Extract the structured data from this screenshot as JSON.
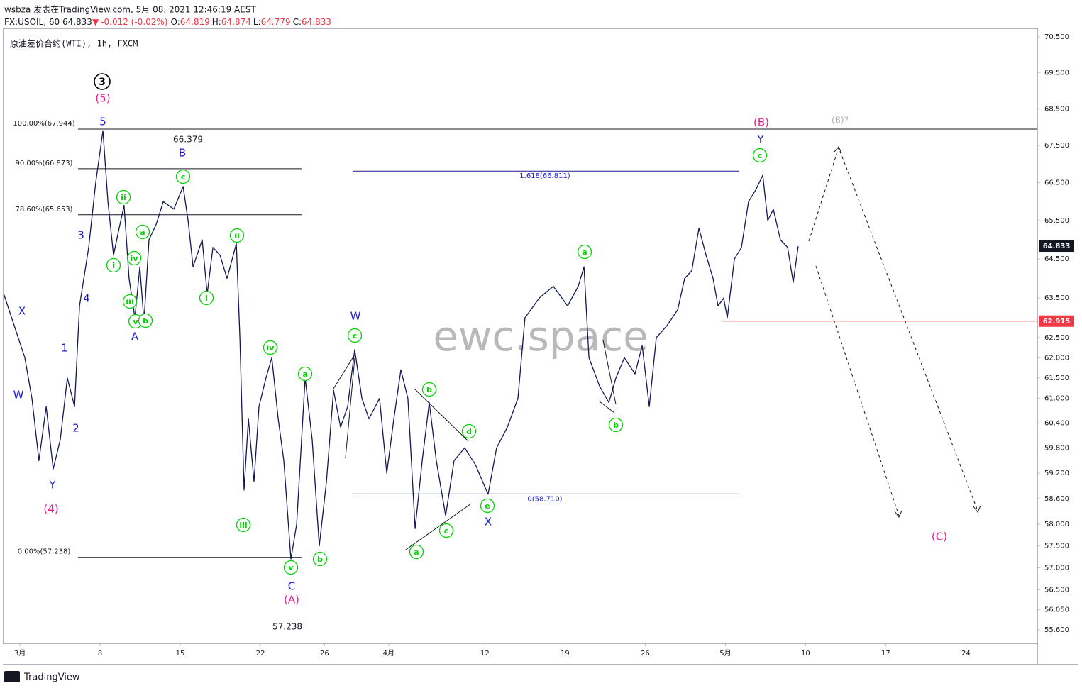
{
  "header": {
    "publisher": "wsbza 发表在TradingView.com, 5月 08, 2021 12:46:19 AEST",
    "symbol": "FX:USOIL, 60 64.833",
    "arrow": "▼",
    "change": "-0.012 (-0.02%)",
    "o_label": "O:",
    "o": "64.819",
    "h_label": "H:",
    "h": "64.874",
    "l_label": "L:",
    "l": "64.779",
    "c_label": "C:",
    "c": "64.833"
  },
  "footer": {
    "brand": "TradingView"
  },
  "chart_data": {
    "type": "line",
    "title": "原油差价合约(WTI), 1h, FXCM",
    "color": "#131755",
    "log_scale": true,
    "grid": false,
    "x": [
      -1.0,
      -0.35,
      0.31,
      0.75,
      1.19,
      1.64,
      2.08,
      2.52,
      2.96,
      3.41,
      3.72,
      4.29,
      4.73,
      5.18,
      5.49,
      5.84,
      6.19,
      6.5,
      6.81,
      7.17,
      7.48,
      7.74,
      8.05,
      8.5,
      8.94,
      9.6,
      10.18,
      10.49,
      10.8,
      11.37,
      11.68,
      12.04,
      12.48,
      12.92,
      13.5,
      13.72,
      13.98,
      14.25,
      14.6,
      14.91,
      15.35,
      15.71,
      16.11,
      16.46,
      16.9,
      17.26,
      17.79,
      18.23,
      18.67,
      19.12,
      19.56,
      20.0,
      20.44,
      20.88,
      21.33,
      21.77,
      22.43,
      22.88,
      23.32,
      23.76,
      24.2,
      24.65,
      25.09,
      25.53,
      25.97,
      26.55,
      27.08,
      27.74,
      28.41,
      29.2,
      29.73,
      30.4,
      31.06,
      31.5,
      32.39,
      33.27,
      34.16,
      34.82,
      35.18,
      35.49,
      36.15,
      36.73,
      37.17,
      37.7,
      38.36,
      38.81,
      39.25,
      39.69,
      40.35,
      41.02,
      41.46,
      41.9,
      42.35,
      42.79,
      43.23,
      43.54,
      43.89,
      44.12,
      44.56,
      45.0,
      45.44,
      45.88,
      46.33,
      46.64,
      46.99,
      47.43,
      47.88,
      48.23,
      48.54
    ],
    "values": [
      63.6,
      62.8,
      62.0,
      61.0,
      59.5,
      60.8,
      59.3,
      60.0,
      61.5,
      60.8,
      63.3,
      64.8,
      66.5,
      67.9,
      66.0,
      64.6,
      65.3,
      65.9,
      64.0,
      63.0,
      64.3,
      62.9,
      65.0,
      65.4,
      66.0,
      65.8,
      66.4,
      65.5,
      64.3,
      65.0,
      63.6,
      64.8,
      64.6,
      64.0,
      64.9,
      62.5,
      58.8,
      60.5,
      59.0,
      60.8,
      61.5,
      62.0,
      60.5,
      59.5,
      57.2,
      58.0,
      61.5,
      60.0,
      57.5,
      59.0,
      61.2,
      60.3,
      60.8,
      62.2,
      61.0,
      60.5,
      61.0,
      59.2,
      60.5,
      61.7,
      61.0,
      57.9,
      59.5,
      60.9,
      59.5,
      58.2,
      59.5,
      59.8,
      59.4,
      58.7,
      59.8,
      60.3,
      61.0,
      63.0,
      63.5,
      63.8,
      63.3,
      63.8,
      64.3,
      62.0,
      61.3,
      60.9,
      61.5,
      62.0,
      61.6,
      62.3,
      60.8,
      62.5,
      62.8,
      63.2,
      64.0,
      64.2,
      65.3,
      64.6,
      64.0,
      63.3,
      63.5,
      63.0,
      64.5,
      64.8,
      66.0,
      66.3,
      66.7,
      65.5,
      65.8,
      65.0,
      64.8,
      63.9,
      64.83
    ],
    "xlim": [
      -1.24,
      63.45
    ],
    "xticks": [
      {
        "value": 0,
        "label": "3月"
      },
      {
        "value": 5,
        "label": "8"
      },
      {
        "value": 10,
        "label": "15"
      },
      {
        "value": 15,
        "label": "22"
      },
      {
        "value": 19,
        "label": "26"
      },
      {
        "value": 23,
        "label": "4月"
      },
      {
        "value": 29,
        "label": "12"
      },
      {
        "value": 34,
        "label": "19"
      },
      {
        "value": 39,
        "label": "26"
      },
      {
        "value": 44,
        "label": "5月"
      },
      {
        "value": 49,
        "label": "10"
      },
      {
        "value": 54,
        "label": "17"
      },
      {
        "value": 59,
        "label": "24"
      }
    ],
    "ylim": [
      55.3,
      70.74
    ],
    "yticks": [
      {
        "value": 70.5,
        "label": "70.500"
      },
      {
        "value": 69.5,
        "label": "69.500"
      },
      {
        "value": 68.5,
        "label": "68.500"
      },
      {
        "value": 67.5,
        "label": "67.500"
      },
      {
        "value": 66.5,
        "label": "66.500"
      },
      {
        "value": 65.5,
        "label": "65.500"
      },
      {
        "value": 64.5,
        "label": "64.500"
      },
      {
        "value": 63.5,
        "label": "63.500"
      },
      {
        "value": 62.5,
        "label": "62.500"
      },
      {
        "value": 62,
        "label": "62.000"
      },
      {
        "value": 61.5,
        "label": "61.500"
      },
      {
        "value": 61,
        "label": "61.000"
      },
      {
        "value": 60.4,
        "label": "60.400"
      },
      {
        "value": 59.8,
        "label": "59.800"
      },
      {
        "value": 59.2,
        "label": "59.200"
      },
      {
        "value": 58.6,
        "label": "58.600"
      },
      {
        "value": 58,
        "label": "58.000"
      },
      {
        "value": 57.5,
        "label": "57.500"
      },
      {
        "value": 57,
        "label": "57.000"
      },
      {
        "value": 56.5,
        "label": "56.500"
      },
      {
        "value": 56.05,
        "label": "56.050"
      },
      {
        "value": 55.6,
        "label": "55.600"
      }
    ],
    "levels": [
      {
        "value": 67.944,
        "label": "100.00%(67.944)"
      },
      {
        "value": 66.873,
        "label": "90.00%(66.873)"
      },
      {
        "value": 65.653,
        "label": "78.60%(65.653)"
      },
      {
        "value": 57.238,
        "label": "0.00%(57.238)"
      },
      {
        "value": 66.811,
        "label": "1.618(66.811)"
      },
      {
        "value": 58.71,
        "label": "0(58.710)"
      }
    ],
    "price_labels": [
      {
        "value": 64.833,
        "color": "#131722"
      },
      {
        "value": 62.915,
        "color": "#f23645"
      }
    ],
    "watermark": "ewc.space",
    "annotations": [
      {
        "text": "3",
        "color": "#000000",
        "circled": true
      },
      {
        "text": "(5)",
        "color": "#e91e8c"
      },
      {
        "text": "5",
        "color": "#1a1adb"
      },
      {
        "text": "66.379",
        "color": "#131722"
      },
      {
        "text": "B",
        "color": "#1a1adb"
      },
      {
        "text": "3",
        "color": "#1a1adb"
      },
      {
        "text": "4",
        "color": "#1a1adb"
      },
      {
        "text": "1",
        "color": "#1a1adb"
      },
      {
        "text": "2",
        "color": "#1a1adb"
      },
      {
        "text": "W",
        "color": "#1a1adb"
      },
      {
        "text": "X",
        "color": "#1a1adb"
      },
      {
        "text": "Y",
        "color": "#1a1adb"
      },
      {
        "text": "(4)",
        "color": "#e91e8c"
      },
      {
        "text": "A",
        "color": "#1a1adb"
      },
      {
        "text": "C",
        "color": "#1a1adb"
      },
      {
        "text": "(A)",
        "color": "#e91e8c"
      },
      {
        "text": "57.238",
        "color": "#131722"
      },
      {
        "text": "W",
        "color": "#1a1adb"
      },
      {
        "text": "X",
        "color": "#1a1adb"
      },
      {
        "text": "(B)",
        "color": "#e91e8c"
      },
      {
        "text": "Y",
        "color": "#1a1adb"
      },
      {
        "text": "(B)?",
        "color": "#b2b5be"
      },
      {
        "text": "(C)",
        "color": "#e91e8c"
      },
      {
        "text": "ii",
        "color": "#00d400",
        "circled": true
      },
      {
        "text": "i",
        "color": "#00d400",
        "circled": true
      },
      {
        "text": "a",
        "color": "#00d400",
        "circled": true
      },
      {
        "text": "iv",
        "color": "#00d400",
        "circled": true
      },
      {
        "text": "iii",
        "color": "#00d400",
        "circled": true
      },
      {
        "text": "v",
        "color": "#00d400",
        "circled": true
      },
      {
        "text": "b",
        "color": "#00d400",
        "circled": true
      },
      {
        "text": "c",
        "color": "#00d400",
        "circled": true
      },
      {
        "text": "ii",
        "color": "#00d400",
        "circled": true
      },
      {
        "text": "i",
        "color": "#00d400",
        "circled": true
      },
      {
        "text": "iii",
        "color": "#00d400",
        "circled": true
      },
      {
        "text": "iv",
        "color": "#00d400",
        "circled": true
      },
      {
        "text": "v",
        "color": "#00d400",
        "circled": true
      },
      {
        "text": "a",
        "color": "#00d400",
        "circled": true
      },
      {
        "text": "b",
        "color": "#00d400",
        "circled": true
      },
      {
        "text": "c",
        "color": "#00d400",
        "circled": true
      },
      {
        "text": "b",
        "color": "#00d400",
        "circled": true
      },
      {
        "text": "d",
        "color": "#00d400",
        "circled": true
      },
      {
        "text": "c",
        "color": "#00d400",
        "circled": true
      },
      {
        "text": "a",
        "color": "#00d400",
        "circled": true
      },
      {
        "text": "e",
        "color": "#00d400",
        "circled": true
      },
      {
        "text": "a",
        "color": "#00d400",
        "circled": true
      },
      {
        "text": "b",
        "color": "#00d400",
        "circled": true
      },
      {
        "text": "c",
        "color": "#00d400",
        "circled": true
      }
    ]
  }
}
